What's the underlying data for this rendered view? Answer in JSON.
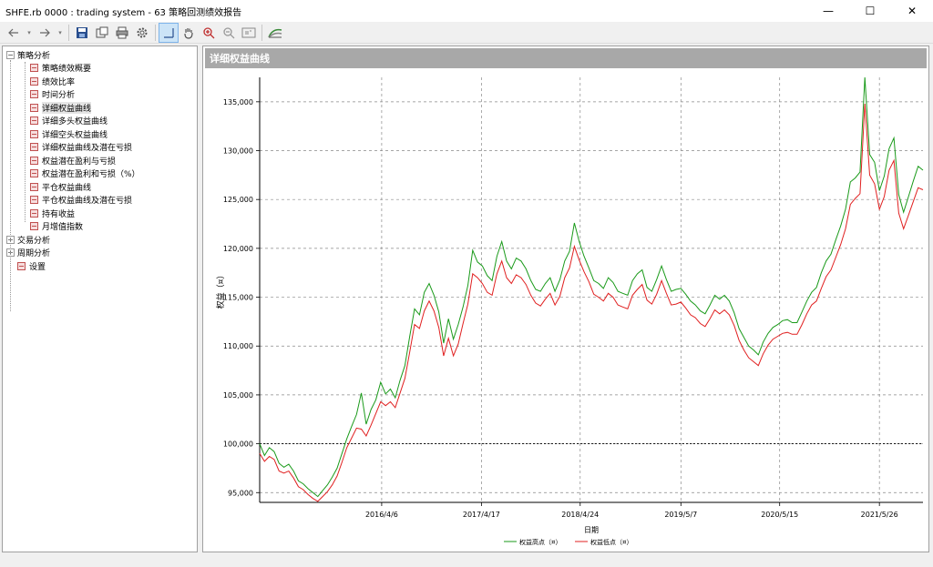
{
  "window": {
    "title": "SHFE.rb 0000 : trading system - 63 策略回测绩效报告",
    "minimize_glyph": "—",
    "maximize_glyph": "☐",
    "close_glyph": "✕"
  },
  "toolbar": {
    "icons": [
      "back-icon",
      "dropdown-icon",
      "forward-icon",
      "dropdown-icon",
      "save-icon",
      "export-icon",
      "print-icon",
      "settings-icon",
      "crosshair-icon",
      "hand-icon",
      "zoom-in-icon",
      "zoom-out-icon",
      "fit-icon",
      "chart-style-icon"
    ]
  },
  "tree": {
    "root1": {
      "label": "策略分析",
      "expander": "−"
    },
    "children": [
      {
        "label": "策略绩效概要"
      },
      {
        "label": "绩效比率"
      },
      {
        "label": "时间分析"
      },
      {
        "label": "详细权益曲线"
      },
      {
        "label": "详细多头权益曲线"
      },
      {
        "label": "详细空头权益曲线"
      },
      {
        "label": "详细权益曲线及潜在亏损"
      },
      {
        "label": "权益潜在盈利与亏损"
      },
      {
        "label": "权益潜在盈利和亏损（%）"
      },
      {
        "label": "平仓权益曲线"
      },
      {
        "label": "平仓权益曲线及潜在亏损"
      },
      {
        "label": "持有收益"
      },
      {
        "label": "月增值指数"
      }
    ],
    "root2": {
      "label": "交易分析",
      "expander": "+"
    },
    "root3": {
      "label": "周期分析",
      "expander": "+"
    },
    "root4": {
      "label": "设置"
    }
  },
  "chart_header": "详细权益曲线",
  "chart_data": {
    "type": "line",
    "title": "",
    "xlabel": "日期",
    "ylabel": "权益（¤）",
    "ylim": [
      94000,
      137500
    ],
    "yticks": [
      95000,
      100000,
      105000,
      110000,
      115000,
      120000,
      125000,
      130000,
      135000
    ],
    "ytick_labels": [
      "95,000",
      "100,000",
      "105,000",
      "110,000",
      "115,000",
      "120,000",
      "125,000",
      "130,000",
      "135,000"
    ],
    "xlim": [
      2015.0,
      2021.85
    ],
    "xticks": [
      2016.26,
      2017.29,
      2018.31,
      2019.35,
      2020.37,
      2021.4
    ],
    "xtick_labels": [
      "2016/4/6",
      "2017/4/17",
      "2018/4/24",
      "2019/5/7",
      "2020/5/15",
      "2021/5/26"
    ],
    "reference_line": 100000,
    "grid": true,
    "legend_position": "bottom",
    "series": [
      {
        "name": "权益高点（¤）",
        "color": "#1a9a1a"
      },
      {
        "name": "权益低点（¤）",
        "color": "#e02020"
      }
    ],
    "x": [
      2015.0,
      2015.05,
      2015.1,
      2015.15,
      2015.2,
      2015.25,
      2015.3,
      2015.35,
      2015.4,
      2015.45,
      2015.5,
      2015.55,
      2015.6,
      2015.65,
      2015.7,
      2015.75,
      2015.8,
      2015.85,
      2015.9,
      2015.95,
      2016.0,
      2016.05,
      2016.1,
      2016.15,
      2016.2,
      2016.25,
      2016.3,
      2016.35,
      2016.4,
      2016.45,
      2016.5,
      2016.55,
      2016.6,
      2016.65,
      2016.7,
      2016.75,
      2016.8,
      2016.85,
      2016.9,
      2016.95,
      2017.0,
      2017.05,
      2017.1,
      2017.15,
      2017.2,
      2017.25,
      2017.3,
      2017.35,
      2017.4,
      2017.45,
      2017.5,
      2017.55,
      2017.6,
      2017.65,
      2017.7,
      2017.75,
      2017.8,
      2017.85,
      2017.9,
      2017.95,
      2018.0,
      2018.05,
      2018.1,
      2018.15,
      2018.2,
      2018.25,
      2018.3,
      2018.35,
      2018.4,
      2018.45,
      2018.5,
      2018.55,
      2018.6,
      2018.65,
      2018.7,
      2018.75,
      2018.8,
      2018.85,
      2018.9,
      2018.95,
      2019.0,
      2019.05,
      2019.1,
      2019.15,
      2019.2,
      2019.25,
      2019.3,
      2019.35,
      2019.4,
      2019.45,
      2019.5,
      2019.55,
      2019.6,
      2019.65,
      2019.7,
      2019.75,
      2019.8,
      2019.85,
      2019.9,
      2019.95,
      2020.0,
      2020.05,
      2020.1,
      2020.15,
      2020.2,
      2020.25,
      2020.3,
      2020.35,
      2020.4,
      2020.45,
      2020.5,
      2020.55,
      2020.6,
      2020.65,
      2020.7,
      2020.75,
      2020.8,
      2020.85,
      2020.9,
      2020.95,
      2021.0,
      2021.05,
      2021.1,
      2021.15,
      2021.2,
      2021.25,
      2021.3,
      2021.35,
      2021.4,
      2021.45,
      2021.5,
      2021.55,
      2021.6,
      2021.65,
      2021.7,
      2021.75,
      2021.8,
      2021.85
    ],
    "high": [
      100000,
      98800,
      99600,
      99200,
      98000,
      97600,
      97900,
      97200,
      96200,
      95900,
      95400,
      95000,
      94600,
      95200,
      95800,
      96600,
      97500,
      99000,
      100500,
      101800,
      103000,
      105200,
      102000,
      103500,
      104500,
      106300,
      105100,
      105600,
      104700,
      106500,
      108000,
      111000,
      113800,
      113200,
      115500,
      116400,
      115200,
      113500,
      110300,
      112800,
      110700,
      112200,
      114000,
      116200,
      119800,
      118600,
      118200,
      117200,
      116700,
      119200,
      120700,
      118700,
      117900,
      119000,
      118700,
      117900,
      116700,
      115800,
      115600,
      116400,
      117000,
      115600,
      116800,
      118700,
      119700,
      122600,
      120700,
      119200,
      118000,
      116700,
      116400,
      115900,
      117000,
      116500,
      115600,
      115400,
      115200,
      116700,
      117400,
      117800,
      116000,
      115600,
      116800,
      118200,
      116800,
      115600,
      115800,
      115900,
      115300,
      114600,
      114200,
      113600,
      113300,
      114200,
      115200,
      114800,
      115200,
      114600,
      113400,
      111800,
      110900,
      110000,
      109600,
      109100,
      110400,
      111300,
      111900,
      112200,
      112600,
      112700,
      112400,
      112400,
      113500,
      114600,
      115500,
      116000,
      117500,
      118700,
      119400,
      120900,
      122300,
      124000,
      126800,
      127200,
      127800,
      137500,
      129600,
      128800,
      125900,
      127400,
      130200,
      131300,
      125500,
      123700,
      125300,
      126900,
      128400,
      128000
    ],
    "low": [
      99000,
      98200,
      98700,
      98400,
      97200,
      97000,
      97200,
      96500,
      95600,
      95300,
      94800,
      94400,
      94100,
      94600,
      95100,
      95800,
      96700,
      98100,
      99600,
      100600,
      101600,
      101500,
      100800,
      101900,
      103100,
      104300,
      103900,
      104300,
      103700,
      105200,
      106700,
      109400,
      112200,
      111800,
      113600,
      114600,
      113600,
      111900,
      109000,
      110800,
      109000,
      110200,
      112300,
      114300,
      117400,
      117000,
      116400,
      115500,
      115200,
      117400,
      118700,
      117000,
      116400,
      117300,
      117000,
      116300,
      115200,
      114400,
      114100,
      114800,
      115400,
      114200,
      115100,
      117000,
      118000,
      120200,
      118800,
      117600,
      116600,
      115300,
      115000,
      114600,
      115400,
      115000,
      114200,
      114000,
      113800,
      115200,
      115800,
      116300,
      114700,
      114300,
      115300,
      116700,
      115400,
      114200,
      114300,
      114500,
      113900,
      113200,
      112900,
      112300,
      112000,
      112800,
      113700,
      113300,
      113700,
      113200,
      112100,
      110600,
      109600,
      108800,
      108400,
      108000,
      109200,
      110100,
      110700,
      111000,
      111300,
      111400,
      111200,
      111200,
      112200,
      113300,
      114200,
      114600,
      115900,
      117100,
      117800,
      119100,
      120400,
      122000,
      124500,
      125100,
      125600,
      134800,
      127500,
      126600,
      124000,
      125300,
      128000,
      129000,
      123600,
      122000,
      123400,
      124800,
      126200,
      126000
    ]
  }
}
